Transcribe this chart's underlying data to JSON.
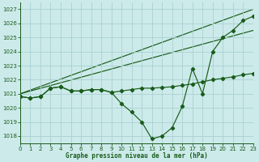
{
  "title": "Graphe pression niveau de la mer (hPa)",
  "bg_color": "#cceaea",
  "grid_color": "#aad0d0",
  "line_color": "#1a5c1a",
  "xlim": [
    0,
    23
  ],
  "ylim": [
    1017.5,
    1027.5
  ],
  "yticks": [
    1018,
    1019,
    1020,
    1021,
    1022,
    1023,
    1024,
    1025,
    1026,
    1027
  ],
  "xticks": [
    0,
    1,
    2,
    3,
    4,
    5,
    6,
    7,
    8,
    9,
    10,
    11,
    12,
    13,
    14,
    15,
    16,
    17,
    18,
    19,
    20,
    21,
    22,
    23
  ],
  "line_dip": {
    "x": [
      0,
      1,
      2,
      3,
      4,
      5,
      6,
      7,
      8,
      9,
      10,
      11,
      12,
      13,
      14,
      15,
      16,
      17,
      18,
      19,
      20,
      21,
      22,
      23
    ],
    "y": [
      1020.8,
      1020.7,
      1020.8,
      1021.4,
      1021.5,
      1021.2,
      1021.2,
      1021.3,
      1021.3,
      1021.1,
      1020.3,
      1019.7,
      1019.0,
      1017.8,
      1018.0,
      1018.6,
      1020.1,
      1022.8,
      1021.0,
      1024.0,
      1025.0,
      1025.5,
      1026.2,
      1026.5
    ]
  },
  "line_flat": {
    "x": [
      0,
      1,
      2,
      3,
      4,
      5,
      6,
      7,
      8,
      9,
      10,
      11,
      12,
      13,
      14,
      15,
      16,
      17,
      18,
      19,
      20,
      21,
      22,
      23
    ],
    "y": [
      1020.8,
      1020.7,
      1020.8,
      1021.4,
      1021.5,
      1021.2,
      1021.2,
      1021.3,
      1021.3,
      1021.1,
      1021.2,
      1021.3,
      1021.4,
      1021.4,
      1021.45,
      1021.5,
      1021.6,
      1021.7,
      1021.85,
      1022.0,
      1022.1,
      1022.2,
      1022.35,
      1022.45
    ]
  },
  "line_diag_top": {
    "x": [
      0,
      23
    ],
    "y": [
      1021.0,
      1027.0
    ]
  },
  "line_diag_mid": {
    "x": [
      0,
      23
    ],
    "y": [
      1021.0,
      1025.5
    ]
  }
}
